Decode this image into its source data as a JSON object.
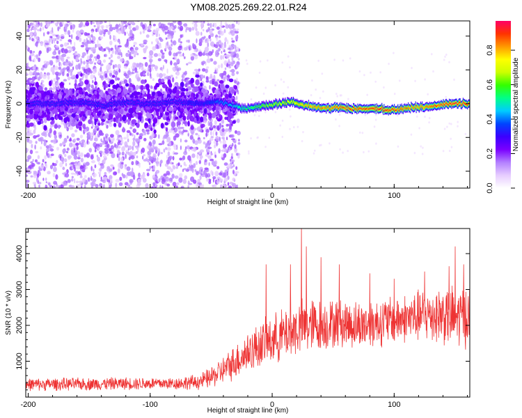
{
  "page": {
    "title": "YM08.2025.269.22.01.R24"
  },
  "chart_data": [
    {
      "type": "heatmap",
      "title": "YM08.2025.269.22.01.R24",
      "xlabel": "Height of straight line (km)",
      "ylabel": "Frequency (Hz)",
      "xlim": [
        -202,
        162
      ],
      "ylim": [
        -50,
        49
      ],
      "xticks": [
        -200,
        -100,
        0,
        100
      ],
      "xtick_labels": [
        "-200",
        "-100",
        "0",
        "100"
      ],
      "yticks": [
        -40,
        -20,
        0,
        20,
        40
      ],
      "ytick_labels": [
        "-40",
        "-20",
        "0",
        "20",
        "40"
      ],
      "colorbar": {
        "label": "Normalized spectral amplitude",
        "range": [
          0,
          0.97
        ],
        "ticks": [
          0.0,
          0.2,
          0.4,
          0.6,
          0.8
        ],
        "tick_labels": [
          "0.0",
          "0.2",
          "0.4",
          "0.6",
          "0.8"
        ],
        "colormap": [
          "#ffffff",
          "#e6ccff",
          "#b380ff",
          "#7a00ff",
          "#3b00ff",
          "#0044ff",
          "#00ccff",
          "#00ff88",
          "#33ff00",
          "#ccff00",
          "#ffff00",
          "#ff9900",
          "#ff3300",
          "#ff0066"
        ]
      },
      "ridge": {
        "x": [
          -200,
          -180,
          -160,
          -140,
          -120,
          -100,
          -80,
          -60,
          -45,
          -35,
          -25,
          -15,
          -5,
          5,
          15,
          25,
          35,
          45,
          55,
          65,
          75,
          85,
          95,
          105,
          115,
          125,
          135,
          145,
          155,
          160
        ],
        "freq": [
          0,
          0,
          1,
          -1,
          1,
          0,
          1,
          0,
          1,
          0,
          -3,
          -2,
          -1,
          0,
          1,
          -1,
          -2,
          -3,
          -2,
          -3,
          -3,
          -3,
          -4,
          -3,
          -2,
          -2,
          -1,
          0,
          0,
          0
        ],
        "amplitude": [
          0.25,
          0.25,
          0.25,
          0.25,
          0.25,
          0.25,
          0.25,
          0.3,
          0.4,
          0.45,
          0.55,
          0.6,
          0.65,
          0.7,
          0.75,
          0.8,
          0.85,
          0.85,
          0.9,
          0.9,
          0.9,
          0.95,
          0.95,
          0.9,
          0.85,
          0.85,
          0.9,
          0.95,
          0.95,
          0.95
        ]
      },
      "noise_extent_x": [
        -202,
        -35
      ]
    },
    {
      "type": "line",
      "xlabel": "Height of straight line (km)",
      "ylabel": "SNR (10 * v/v)",
      "xlim": [
        -202,
        162
      ],
      "ylim": [
        0,
        4700
      ],
      "xticks": [
        -200,
        -100,
        0,
        100
      ],
      "xtick_labels": [
        "-200",
        "-100",
        "0",
        "100"
      ],
      "yticks": [
        1000,
        2000,
        3000,
        4000
      ],
      "ytick_labels": [
        "1000",
        "2000",
        "3000",
        "4000"
      ],
      "line_color": "#ee3333",
      "series": [
        {
          "envelope": {
            "x": [
              -202,
              -180,
              -160,
              -140,
              -120,
              -100,
              -80,
              -60,
              -50,
              -40,
              -30,
              -20,
              -10,
              0,
              10,
              20,
              30,
              40,
              50,
              60,
              70,
              80,
              90,
              100,
              110,
              120,
              130,
              140,
              150,
              160
            ],
            "mean": [
              350,
              360,
              360,
              370,
              380,
              380,
              380,
              420,
              550,
              750,
              1000,
              1250,
              1450,
              1600,
              1750,
              1900,
              2000,
              2000,
              2050,
              2050,
              2000,
              2050,
              2100,
              2150,
              2200,
              2250,
              2300,
              2300,
              2200,
              2300
            ],
            "spread": [
              180,
              180,
              180,
              180,
              180,
              180,
              180,
              220,
              300,
              400,
              500,
              600,
              650,
              700,
              750,
              800,
              800,
              750,
              700,
              700,
              700,
              700,
              700,
              700,
              700,
              750,
              800,
              850,
              900,
              900
            ]
          },
          "peaks": {
            "x": [
              -5,
              15,
              24,
              28,
              40,
              55,
              80,
              100,
              125,
              145,
              150,
              157
            ],
            "y": [
              3700,
              3700,
              4800,
              4200,
              3900,
              3700,
              3450,
              3300,
              3500,
              3650,
              4200,
              3700
            ]
          }
        }
      ]
    }
  ]
}
